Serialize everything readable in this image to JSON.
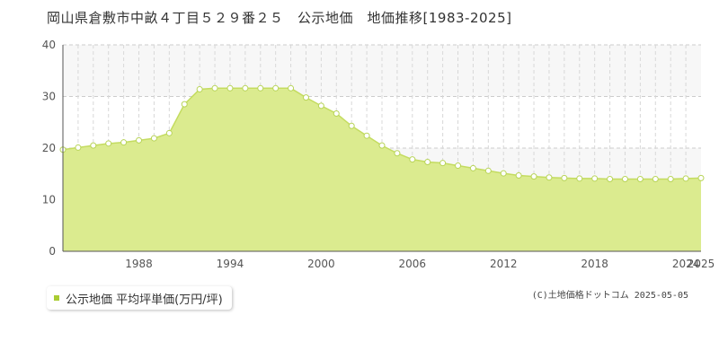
{
  "page": {
    "title": "岡山県倉敷市中畝４丁目５２９番２５　公示地価　地価推移[1983-2025]",
    "legend_label": "公示地価 平均坪単価(万円/坪)",
    "copyright": "(C)土地価格ドットコム 2025-05-05"
  },
  "colors": {
    "area_fill": "#dbeb8f",
    "line": "#c4dc60",
    "marker_stroke": "#b8d458",
    "legend_swatch": "#aacc33",
    "plot_bg_band": "#f7f7f7",
    "grid": "#cccccc"
  },
  "chart_data": {
    "type": "area",
    "title": "岡山県倉敷市中畝４丁目５２９番２５　公示地価　地価推移[1983-2025]",
    "xlabel": "",
    "ylabel": "",
    "xlim": [
      1983,
      2025
    ],
    "ylim": [
      0,
      40
    ],
    "yticks": [
      0,
      10,
      20,
      30,
      40
    ],
    "xtick_labels": [
      "1988",
      "1994",
      "2000",
      "2006",
      "2012",
      "2018",
      "2024",
      "2025"
    ],
    "grid": true,
    "legend_position": "bottom-left",
    "series": [
      {
        "name": "公示地価 平均坪単価(万円/坪)",
        "x": [
          1983,
          1984,
          1985,
          1986,
          1987,
          1988,
          1989,
          1990,
          1991,
          1992,
          1993,
          1994,
          1995,
          1996,
          1997,
          1998,
          1999,
          2000,
          2001,
          2002,
          2003,
          2004,
          2005,
          2006,
          2007,
          2008,
          2009,
          2010,
          2011,
          2012,
          2013,
          2014,
          2015,
          2016,
          2017,
          2018,
          2019,
          2020,
          2021,
          2022,
          2023,
          2024,
          2025
        ],
        "values": [
          19.7,
          20.1,
          20.5,
          20.9,
          21.1,
          21.5,
          21.9,
          22.9,
          28.5,
          31.4,
          31.6,
          31.6,
          31.6,
          31.6,
          31.6,
          31.6,
          29.8,
          28.2,
          26.7,
          24.3,
          22.4,
          20.5,
          19.0,
          17.8,
          17.3,
          17.1,
          16.6,
          16.1,
          15.6,
          15.1,
          14.7,
          14.5,
          14.3,
          14.2,
          14.1,
          14.1,
          14.0,
          14.0,
          14.0,
          14.0,
          14.0,
          14.1,
          14.2
        ]
      }
    ]
  }
}
